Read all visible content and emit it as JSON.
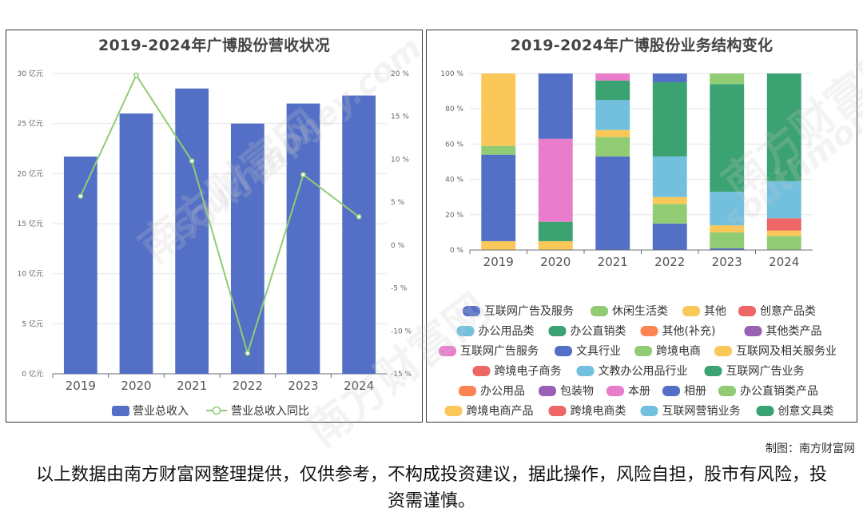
{
  "charts": {
    "left": {
      "title": "2019-2024年广博股份营收状况"
    },
    "right": {
      "title": "2019-2024年广博股份业务结构变化"
    }
  },
  "credit": "制图：南方财富网",
  "disclaimer": "以上数据由南方财富网整理提供，仅供参考，不构成投资建议，据此操作，风险自担，股市有风险，投资需谨慎。",
  "watermark": {
    "cn": "南方财富网",
    "en": "southmoney.com"
  },
  "chart_data": [
    {
      "type": "bar",
      "title": "2019-2024年广博股份营收状况",
      "categories": [
        "2019",
        "2020",
        "2021",
        "2022",
        "2023",
        "2024"
      ],
      "series": [
        {
          "name": "营业总收入",
          "type": "bar",
          "axis": "left",
          "color": "#5470c6",
          "values": [
            21.7,
            26.0,
            28.5,
            25.0,
            27.0,
            27.8
          ]
        },
        {
          "name": "营业总收入同比",
          "type": "line",
          "axis": "right",
          "color": "#91cc75",
          "values": [
            5.7,
            19.8,
            9.8,
            -12.6,
            8.2,
            3.3
          ]
        }
      ],
      "y_left": {
        "min": 0,
        "max": 30,
        "ticks": [
          0,
          5,
          10,
          15,
          20,
          25,
          30
        ],
        "unit": "亿元",
        "tick_labels": [
          "0 亿元",
          "5 亿元",
          "10 亿元",
          "15 亿元",
          "20 亿元",
          "25 亿元",
          "30 亿元"
        ]
      },
      "y_right": {
        "min": -15,
        "max": 20,
        "ticks": [
          -15,
          -10,
          -5,
          0,
          5,
          10,
          15,
          20
        ],
        "unit": "%",
        "tick_labels": [
          "-15 %",
          "-10 %",
          "-5 %",
          "0 %",
          "5 %",
          "10 %",
          "15 %",
          "20 %"
        ]
      },
      "legend_position": "bottom"
    },
    {
      "type": "bar",
      "stacked": true,
      "percent": true,
      "title": "2019-2024年广博股份业务结构变化",
      "categories": [
        "2019",
        "2020",
        "2021",
        "2022",
        "2023",
        "2024"
      ],
      "y_range": [
        0,
        100
      ],
      "y_ticks": [
        0,
        20,
        40,
        60,
        80,
        100
      ],
      "y_tick_labels": [
        "0 %",
        "20 %",
        "40 %",
        "60 %",
        "80 %",
        "100 %"
      ],
      "legend_position": "bottom",
      "series": [
        {
          "name": "互联网广告及服务",
          "color": "#5470c6",
          "values": [
            0,
            0,
            0,
            0,
            0,
            0
          ]
        },
        {
          "name": "休闲生活类",
          "color": "#91cc75",
          "values": [
            0,
            0,
            0,
            0,
            0,
            0
          ]
        },
        {
          "name": "其他",
          "color": "#fac858",
          "values": [
            5,
            5,
            0,
            0,
            0,
            0
          ]
        },
        {
          "name": "创意产品类",
          "color": "#ee6666",
          "values": [
            0,
            0,
            0,
            0,
            0,
            0
          ]
        },
        {
          "name": "办公用品类",
          "color": "#73c0de",
          "values": [
            0,
            0,
            0,
            0,
            0,
            0
          ]
        },
        {
          "name": "办公直销类",
          "color": "#3ba272",
          "values": [
            0,
            0,
            0,
            0,
            0,
            0
          ]
        },
        {
          "name": "其他(补充)",
          "color": "#fc8452",
          "values": [
            0,
            0,
            0,
            0,
            0,
            0
          ]
        },
        {
          "name": "其他类产品",
          "color": "#9a60b4",
          "values": [
            0,
            0,
            0,
            0,
            0,
            0
          ]
        },
        {
          "name": "互联网广告服务",
          "color": "#ea7ccc",
          "values": [
            0,
            0,
            0,
            0,
            0,
            0
          ]
        },
        {
          "name": "文具行业",
          "color": "#5470c6",
          "values": [
            49,
            0,
            53,
            15,
            1,
            0
          ]
        },
        {
          "name": "跨境电商",
          "color": "#91cc75",
          "values": [
            0,
            0,
            11,
            11,
            9,
            8
          ]
        },
        {
          "name": "互联网及相关服务业",
          "color": "#fac858",
          "values": [
            0,
            0,
            4,
            4,
            4,
            3
          ]
        },
        {
          "name": "跨境电子商务",
          "color": "#ee6666",
          "values": [
            0,
            0,
            0,
            0,
            0,
            7
          ]
        },
        {
          "name": "文教办公用品行业",
          "color": "#73c0de",
          "values": [
            0,
            0,
            17,
            23,
            19,
            21
          ]
        },
        {
          "name": "互联网广告业务",
          "color": "#3ba272",
          "values": [
            0,
            11,
            11,
            42,
            61,
            61
          ]
        },
        {
          "name": "办公用品",
          "color": "#fc8452",
          "values": [
            0,
            0,
            0,
            0,
            0,
            0
          ]
        },
        {
          "name": "包装物",
          "color": "#9a60b4",
          "values": [
            0,
            0,
            0,
            0,
            0,
            0
          ]
        },
        {
          "name": "本册",
          "color": "#ea7ccc",
          "values": [
            0,
            47,
            4,
            0,
            0,
            0
          ]
        },
        {
          "name": "相册",
          "color": "#5470c6",
          "values": [
            0,
            37,
            0,
            5,
            0,
            0
          ]
        },
        {
          "name": "办公直销类产品",
          "color": "#91cc75",
          "values": [
            5,
            0,
            0,
            0,
            6,
            0
          ]
        },
        {
          "name": "跨境电商产品",
          "color": "#fac858",
          "values": [
            41,
            0,
            0,
            0,
            0,
            0
          ]
        },
        {
          "name": "跨境电商类",
          "color": "#ee6666",
          "values": [
            0,
            0,
            0,
            0,
            0,
            0
          ]
        },
        {
          "name": "互联网营销业务",
          "color": "#73c0de",
          "values": [
            0,
            0,
            0,
            0,
            0,
            0
          ]
        },
        {
          "name": "创意文具类",
          "color": "#3ba272",
          "values": [
            0,
            0,
            0,
            0,
            0,
            0
          ]
        }
      ]
    }
  ]
}
